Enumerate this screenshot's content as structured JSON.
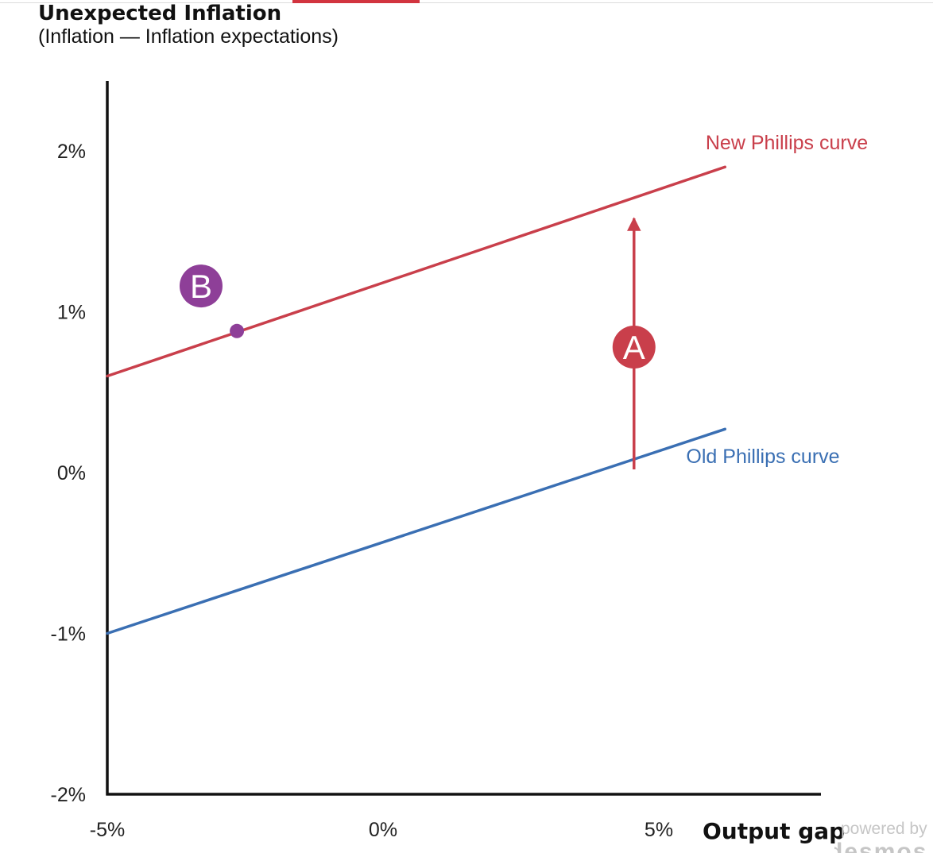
{
  "chart_data": {
    "type": "line",
    "title": "Unexpected Inflation",
    "subtitle": "(Inflation  —  Inflation expectations)",
    "xlabel": "Output gap",
    "ylabel": "Unexpected Inflation",
    "xlim": [
      -5,
      9
    ],
    "ylim": [
      -2,
      2.45
    ],
    "x_ticks": [
      {
        "value": -5,
        "label": "-5%"
      },
      {
        "value": 0,
        "label": "0%"
      },
      {
        "value": 5,
        "label": "5%"
      }
    ],
    "y_ticks": [
      {
        "value": 2,
        "label": "2%"
      },
      {
        "value": 1,
        "label": "1%"
      },
      {
        "value": 0,
        "label": "0%"
      },
      {
        "value": -1,
        "label": "-1%"
      },
      {
        "value": -2,
        "label": "-2%"
      }
    ],
    "grid": false,
    "series": [
      {
        "name": "New Phillips curve",
        "color": "#c93f4b",
        "points": [
          [
            -5,
            0.6
          ],
          [
            6.2,
            1.9
          ]
        ]
      },
      {
        "name": "Old Phillips curve",
        "color": "#3a6fb3",
        "points": [
          [
            -5,
            -1.0
          ],
          [
            6.2,
            0.27
          ]
        ]
      }
    ],
    "annotations": [
      {
        "label": "A",
        "color": "#c93f4b",
        "type": "arrow",
        "from": [
          4.55,
          0.02
        ],
        "to": [
          4.55,
          1.58
        ],
        "badge": [
          4.55,
          0.78
        ]
      },
      {
        "label": "B",
        "color": "#8e3f98",
        "type": "point",
        "point": [
          -2.65,
          0.88
        ],
        "badge": [
          -3.3,
          1.16
        ]
      }
    ]
  },
  "watermark": {
    "line1": "powered by",
    "line2": "desmos"
  }
}
